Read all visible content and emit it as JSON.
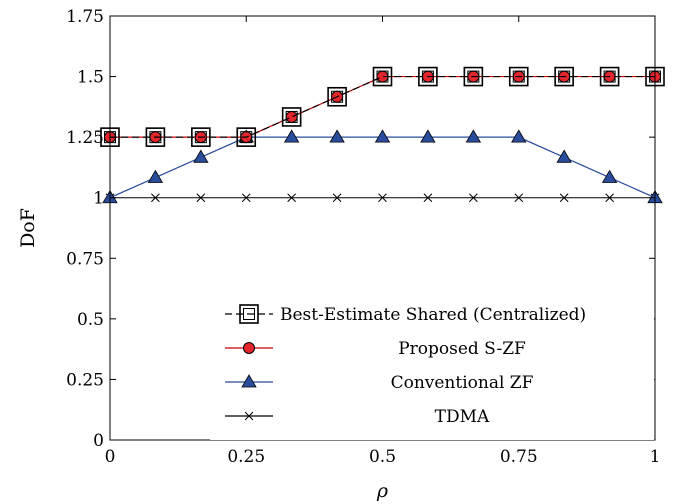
{
  "chart_data": {
    "type": "line",
    "xlabel": "ρ",
    "ylabel": "DoF",
    "xlim": [
      0,
      1
    ],
    "ylim": [
      0,
      1.75
    ],
    "xticks": [
      0,
      0.25,
      0.5,
      0.75,
      1
    ],
    "xtick_labels": [
      "0",
      "0.25",
      "0.5",
      "0.75",
      "1"
    ],
    "yticks": [
      0,
      0.25,
      0.5,
      0.75,
      1,
      1.25,
      1.5,
      1.75
    ],
    "ytick_labels": [
      "0",
      "0.25",
      "0.5",
      "0.75",
      "1",
      "1.25",
      "1.5",
      "1.75"
    ],
    "grid": false,
    "legend_position": "bottom-right",
    "x": [
      0,
      0.0833,
      0.1667,
      0.25,
      0.3333,
      0.4167,
      0.5,
      0.5833,
      0.6667,
      0.75,
      0.8333,
      0.9167,
      1
    ],
    "series": [
      {
        "name": "Best-Estimate Shared (Centralized)",
        "color": "#000000",
        "marker": "open-square",
        "line": "dashed",
        "values": [
          1.25,
          1.25,
          1.25,
          1.25,
          1.3333,
          1.4167,
          1.5,
          1.5,
          1.5,
          1.5,
          1.5,
          1.5,
          1.5
        ]
      },
      {
        "name": "Proposed S-ZF",
        "color": "#cc0000",
        "marker": "filled-circle",
        "line": "solid",
        "values": [
          1.25,
          1.25,
          1.25,
          1.25,
          1.3333,
          1.4167,
          1.5,
          1.5,
          1.5,
          1.5,
          1.5,
          1.5,
          1.5
        ]
      },
      {
        "name": "Conventional ZF",
        "color": "#2a4c9c",
        "marker": "filled-triangle",
        "line": "solid",
        "values": [
          1,
          1.0833,
          1.1667,
          1.25,
          1.25,
          1.25,
          1.25,
          1.25,
          1.25,
          1.25,
          1.1667,
          1.0833,
          1
        ]
      },
      {
        "name": "TDMA",
        "color": "#000000",
        "marker": "cross",
        "line": "solid",
        "values": [
          1,
          1,
          1,
          1,
          1,
          1,
          1,
          1,
          1,
          1,
          1,
          1,
          1
        ]
      }
    ]
  }
}
